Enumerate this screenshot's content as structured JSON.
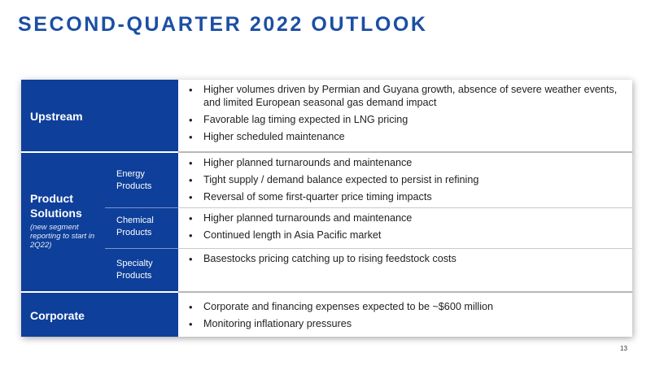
{
  "title": "SECOND-QUARTER 2022 OUTLOOK",
  "upstream": {
    "label": "Upstream",
    "bullets": [
      "Higher volumes driven by Permian and Guyana growth, absence of severe weather events, and limited European seasonal gas demand impact",
      "Favorable lag timing expected in LNG pricing",
      "Higher scheduled maintenance"
    ]
  },
  "product_solutions": {
    "label": "Product Solutions",
    "note": "(new segment reporting to start in 2Q22)",
    "energy": {
      "label": "Energy Products",
      "bullets": [
        "Higher planned turnarounds and maintenance",
        "Tight supply / demand balance expected to persist in refining",
        "Reversal of some first-quarter price timing impacts"
      ]
    },
    "chemical": {
      "label": "Chemical Products",
      "bullets": [
        "Higher planned turnarounds and maintenance",
        "Continued length in Asia Pacific market"
      ]
    },
    "specialty": {
      "label": "Specialty Products",
      "bullets": [
        "Basestocks pricing catching up to rising feedstock costs"
      ]
    }
  },
  "corporate": {
    "label": "Corporate",
    "bullets": [
      "Corporate and financing expenses expected to be ~$600 million",
      "Monitoring inflationary pressures"
    ]
  },
  "page_number": "13"
}
